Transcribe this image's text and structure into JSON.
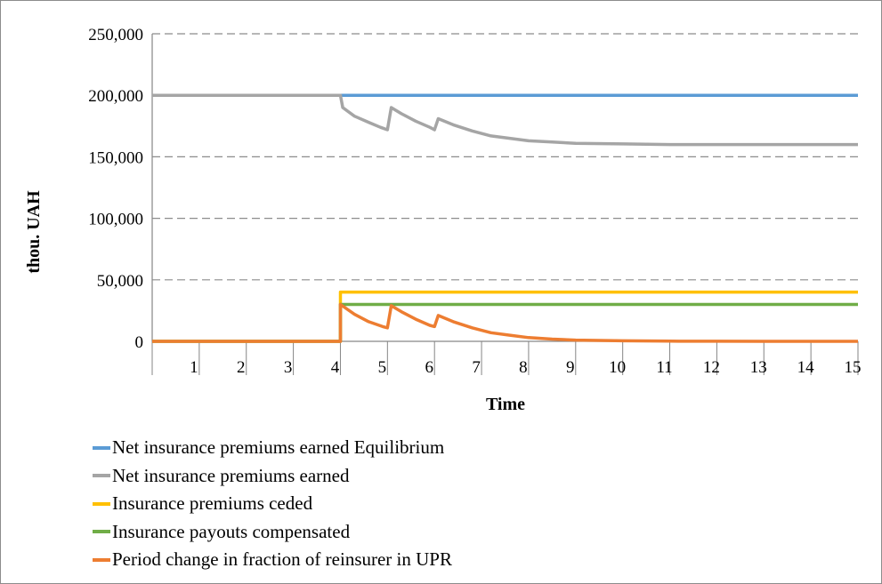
{
  "chart_data": {
    "type": "line",
    "xlabel": "Time",
    "ylabel": "thou. UAH",
    "xlim": [
      0,
      15
    ],
    "ylim": [
      0,
      250000
    ],
    "x_ticks": [
      "1",
      "2",
      "3",
      "4",
      "5",
      "6",
      "7",
      "8",
      "9",
      "10",
      "11",
      "12",
      "13",
      "14",
      "15"
    ],
    "y_ticks": [
      "0",
      "50,000",
      "100,000",
      "150,000",
      "200,000",
      "250,000"
    ],
    "y_tick_values": [
      0,
      50000,
      100000,
      150000,
      200000,
      250000
    ],
    "grid": "horizontal dashed",
    "legend_position": "bottom",
    "series": [
      {
        "name": "Net insurance premiums earned Equilibrium",
        "color": "#5b9bd5",
        "x": [
          0,
          15
        ],
        "y": [
          200000,
          200000
        ]
      },
      {
        "name": "Net insurance premiums earned",
        "color": "#a5a5a5",
        "x": [
          0,
          4,
          4.05,
          4.3,
          4.6,
          4.85,
          5.0,
          5.08,
          5.3,
          5.6,
          5.9,
          6.0,
          6.08,
          6.4,
          6.8,
          7.2,
          7.6,
          8.0,
          8.5,
          9.0,
          10.0,
          11.0,
          12.0,
          13.0,
          14.0,
          15.0
        ],
        "y": [
          200000,
          200000,
          190000,
          183000,
          178000,
          174000,
          172000,
          190000,
          185000,
          179000,
          174000,
          172000,
          181000,
          176000,
          171000,
          167000,
          165000,
          163000,
          162000,
          161000,
          160500,
          160000,
          160000,
          160000,
          160000,
          160000
        ]
      },
      {
        "name": "Insurance premiums ceded",
        "color": "#ffc000",
        "x": [
          0,
          4,
          4,
          15
        ],
        "y": [
          0,
          0,
          40000,
          40000
        ]
      },
      {
        "name": "Insurance payouts compensated",
        "color": "#70ad47",
        "x": [
          0,
          4,
          4,
          15
        ],
        "y": [
          0,
          0,
          30000,
          30000
        ]
      },
      {
        "name": "Period change in fraction of reinsurer in UPR",
        "color": "#ed7d31",
        "x": [
          0,
          4,
          4.0,
          4.3,
          4.6,
          4.9,
          5.0,
          5.08,
          5.3,
          5.6,
          5.9,
          6.0,
          6.08,
          6.4,
          6.8,
          7.2,
          7.6,
          8.0,
          8.5,
          9.0,
          10.0,
          11.0,
          12.0,
          13.0,
          14.0,
          15.0
        ],
        "y": [
          0,
          0,
          30000,
          22000,
          16000,
          12000,
          11000,
          29000,
          24000,
          18000,
          13000,
          12000,
          21000,
          16000,
          11000,
          7000,
          5000,
          3000,
          1800,
          1000,
          400,
          150,
          50,
          0,
          0,
          0
        ]
      }
    ]
  }
}
